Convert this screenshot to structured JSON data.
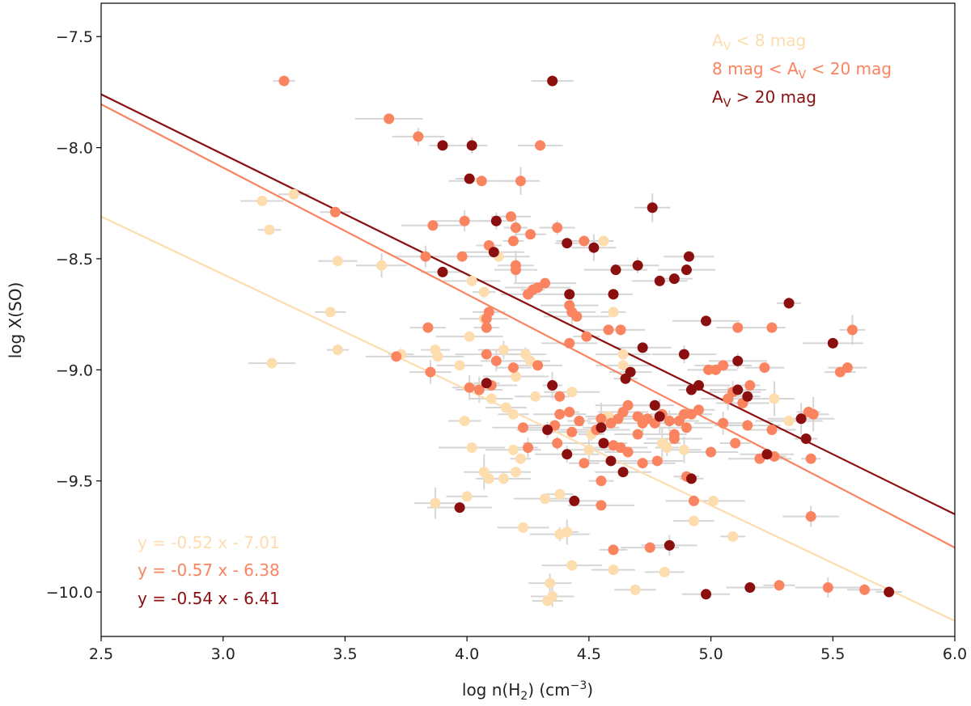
{
  "chart_data": {
    "type": "scatter",
    "xlabel": "log n(H₂) (cm⁻³)",
    "ylabel": "log X(SO)",
    "xlim": [
      2.5,
      6.0
    ],
    "ylim": [
      -10.2,
      -7.35
    ],
    "xticks": [
      "2.5",
      "3.0",
      "3.5",
      "4.0",
      "4.5",
      "5.0",
      "5.5",
      "6.0"
    ],
    "yticks": [
      "-7.5",
      "-8.0",
      "-8.5",
      "-9.0",
      "-9.5",
      "-10.0"
    ],
    "xtick_values": [
      2.5,
      3.0,
      3.5,
      4.0,
      4.5,
      5.0,
      5.5,
      6.0
    ],
    "ytick_values": [
      -7.5,
      -8.0,
      -8.5,
      -9.0,
      -9.5,
      -10.0
    ],
    "legend_position": "top-right",
    "fit_position": "bottom-left",
    "series": [
      {
        "name": "A_V < 8 mag",
        "legend": "AV < 8 mag",
        "color": "#fddcae",
        "fit": {
          "slope": -0.52,
          "intercept": -7.01,
          "label": "y = -0.52 x - 7.01"
        },
        "points": [
          [
            3.16,
            -8.24
          ],
          [
            3.29,
            -8.21
          ],
          [
            3.19,
            -8.37
          ],
          [
            3.47,
            -8.51
          ],
          [
            3.65,
            -8.53
          ],
          [
            3.44,
            -8.74
          ],
          [
            3.2,
            -8.97
          ],
          [
            3.47,
            -8.91
          ],
          [
            3.73,
            -8.93
          ],
          [
            3.87,
            -8.91
          ],
          [
            3.88,
            -8.94
          ],
          [
            4.01,
            -8.85
          ],
          [
            3.97,
            -8.98
          ],
          [
            4.02,
            -8.6
          ],
          [
            4.07,
            -8.65
          ],
          [
            4.13,
            -8.49
          ],
          [
            4.07,
            -8.77
          ],
          [
            4.15,
            -8.91
          ],
          [
            4.24,
            -8.93
          ],
          [
            4.26,
            -8.96
          ],
          [
            4.2,
            -9.03
          ],
          [
            4.1,
            -9.13
          ],
          [
            4.16,
            -9.17
          ],
          [
            4.19,
            -9.2
          ],
          [
            3.99,
            -9.23
          ],
          [
            4.02,
            -9.35
          ],
          [
            4.19,
            -9.36
          ],
          [
            4.22,
            -9.4
          ],
          [
            4.2,
            -9.46
          ],
          [
            4.15,
            -9.49
          ],
          [
            4.09,
            -9.49
          ],
          [
            4.07,
            -9.46
          ],
          [
            4.0,
            -9.57
          ],
          [
            3.87,
            -9.6
          ],
          [
            4.32,
            -9.58
          ],
          [
            4.38,
            -9.56
          ],
          [
            4.23,
            -9.71
          ],
          [
            4.38,
            -9.74
          ],
          [
            4.41,
            -9.73
          ],
          [
            4.43,
            -9.88
          ],
          [
            4.34,
            -9.96
          ],
          [
            4.35,
            -10.02
          ],
          [
            4.33,
            -10.04
          ],
          [
            4.51,
            -9.29
          ],
          [
            4.5,
            -9.36
          ],
          [
            4.6,
            -8.74
          ],
          [
            4.56,
            -8.42
          ],
          [
            4.64,
            -8.93
          ],
          [
            4.64,
            -8.98
          ],
          [
            4.8,
            -9.33
          ],
          [
            4.82,
            -9.35
          ],
          [
            4.89,
            -9.36
          ],
          [
            4.93,
            -9.68
          ],
          [
            5.01,
            -9.59
          ],
          [
            5.09,
            -9.75
          ],
          [
            4.6,
            -9.9
          ],
          [
            4.69,
            -9.99
          ],
          [
            4.81,
            -9.91
          ],
          [
            5.05,
            -9.24
          ],
          [
            5.32,
            -9.23
          ],
          [
            5.26,
            -9.13
          ],
          [
            4.58,
            -9.21
          ],
          [
            4.43,
            -9.1
          ],
          [
            4.28,
            -9.12
          ]
        ]
      },
      {
        "name": "8 mag < A_V < 20 mag",
        "legend": "8 mag < AV < 20 mag",
        "color": "#fa8460",
        "fit": {
          "slope": -0.57,
          "intercept": -6.38,
          "label": "y = -0.57 x - 6.38"
        },
        "points": [
          [
            3.25,
            -7.7
          ],
          [
            3.68,
            -7.87
          ],
          [
            3.8,
            -7.95
          ],
          [
            4.3,
            -7.99
          ],
          [
            4.06,
            -8.15
          ],
          [
            4.22,
            -8.15
          ],
          [
            3.46,
            -8.29
          ],
          [
            3.86,
            -8.35
          ],
          [
            3.99,
            -8.33
          ],
          [
            4.18,
            -8.31
          ],
          [
            4.2,
            -8.36
          ],
          [
            4.26,
            -8.39
          ],
          [
            4.37,
            -8.36
          ],
          [
            4.48,
            -8.42
          ],
          [
            3.83,
            -8.49
          ],
          [
            3.98,
            -8.49
          ],
          [
            4.09,
            -8.44
          ],
          [
            4.19,
            -8.42
          ],
          [
            4.2,
            -8.53
          ],
          [
            4.2,
            -8.55
          ],
          [
            4.32,
            -8.61
          ],
          [
            4.29,
            -8.63
          ],
          [
            4.27,
            -8.64
          ],
          [
            4.25,
            -8.66
          ],
          [
            4.09,
            -8.74
          ],
          [
            4.08,
            -8.77
          ],
          [
            4.42,
            -8.71
          ],
          [
            4.43,
            -8.74
          ],
          [
            4.45,
            -8.76
          ],
          [
            3.84,
            -8.81
          ],
          [
            4.08,
            -8.81
          ],
          [
            4.58,
            -8.82
          ],
          [
            4.63,
            -8.82
          ],
          [
            4.49,
            -8.85
          ],
          [
            4.42,
            -8.88
          ],
          [
            3.71,
            -8.94
          ],
          [
            4.08,
            -8.93
          ],
          [
            4.12,
            -8.96
          ],
          [
            4.19,
            -8.99
          ],
          [
            4.29,
            -8.98
          ],
          [
            3.85,
            -9.01
          ],
          [
            4.01,
            -9.08
          ],
          [
            4.05,
            -9.09
          ],
          [
            4.1,
            -9.07
          ],
          [
            4.38,
            -9.12
          ],
          [
            4.42,
            -9.19
          ],
          [
            4.46,
            -9.23
          ],
          [
            4.43,
            -9.28
          ],
          [
            4.55,
            -9.22
          ],
          [
            4.53,
            -9.27
          ],
          [
            4.59,
            -9.24
          ],
          [
            4.62,
            -9.22
          ],
          [
            4.64,
            -9.19
          ],
          [
            4.66,
            -9.16
          ],
          [
            4.7,
            -9.21
          ],
          [
            4.72,
            -9.24
          ],
          [
            4.74,
            -9.22
          ],
          [
            4.77,
            -9.24
          ],
          [
            4.8,
            -9.2
          ],
          [
            4.83,
            -9.23
          ],
          [
            4.85,
            -9.29
          ],
          [
            4.87,
            -9.23
          ],
          [
            4.89,
            -9.2
          ],
          [
            4.9,
            -9.26
          ],
          [
            4.92,
            -9.2
          ],
          [
            4.95,
            -9.18
          ],
          [
            4.99,
            -9.0
          ],
          [
            5.02,
            -9.0
          ],
          [
            5.05,
            -8.98
          ],
          [
            5.07,
            -9.13
          ],
          [
            5.09,
            -9.1
          ],
          [
            5.05,
            -9.24
          ],
          [
            5.0,
            -9.37
          ],
          [
            5.11,
            -8.81
          ],
          [
            5.16,
            -9.07
          ],
          [
            5.13,
            -9.15
          ],
          [
            5.15,
            -9.25
          ],
          [
            5.1,
            -9.33
          ],
          [
            5.2,
            -9.4
          ],
          [
            5.22,
            -8.99
          ],
          [
            5.25,
            -8.81
          ],
          [
            5.25,
            -9.27
          ],
          [
            5.26,
            -9.39
          ],
          [
            5.4,
            -9.19
          ],
          [
            5.41,
            -9.4
          ],
          [
            5.42,
            -9.2
          ],
          [
            5.53,
            -9.01
          ],
          [
            5.56,
            -8.99
          ],
          [
            5.58,
            -8.82
          ],
          [
            4.23,
            -9.26
          ],
          [
            4.25,
            -9.35
          ],
          [
            4.37,
            -9.33
          ],
          [
            4.48,
            -9.42
          ],
          [
            4.55,
            -9.5
          ],
          [
            4.6,
            -9.34
          ],
          [
            4.66,
            -9.37
          ],
          [
            4.72,
            -9.42
          ],
          [
            4.78,
            -9.41
          ],
          [
            4.9,
            -9.48
          ],
          [
            4.93,
            -9.59
          ],
          [
            4.55,
            -9.61
          ],
          [
            4.6,
            -9.81
          ],
          [
            4.75,
            -9.8
          ],
          [
            5.28,
            -9.97
          ],
          [
            5.48,
            -9.98
          ],
          [
            5.63,
            -9.99
          ],
          [
            5.41,
            -9.66
          ],
          [
            4.63,
            -9.35
          ],
          [
            4.7,
            -9.29
          ],
          [
            4.85,
            -9.31
          ],
          [
            4.38,
            -9.2
          ],
          [
            4.36,
            -9.25
          ]
        ]
      },
      {
        "name": "A_V > 20 mag",
        "legend": "AV > 20 mag",
        "color": "#8b0f0f",
        "fit": {
          "slope": -0.54,
          "intercept": -6.41,
          "label": "y = -0.54 x - 6.41"
        },
        "points": [
          [
            4.35,
            -7.7
          ],
          [
            3.9,
            -7.99
          ],
          [
            4.02,
            -7.99
          ],
          [
            4.01,
            -8.14
          ],
          [
            4.76,
            -8.27
          ],
          [
            4.12,
            -8.33
          ],
          [
            4.41,
            -8.43
          ],
          [
            4.52,
            -8.45
          ],
          [
            4.11,
            -8.47
          ],
          [
            3.9,
            -8.56
          ],
          [
            4.61,
            -8.55
          ],
          [
            4.7,
            -8.53
          ],
          [
            4.91,
            -8.49
          ],
          [
            4.9,
            -8.55
          ],
          [
            4.85,
            -8.59
          ],
          [
            4.79,
            -8.6
          ],
          [
            4.6,
            -8.66
          ],
          [
            4.42,
            -8.66
          ],
          [
            5.32,
            -8.7
          ],
          [
            4.98,
            -8.78
          ],
          [
            4.72,
            -8.9
          ],
          [
            4.89,
            -8.93
          ],
          [
            5.11,
            -8.96
          ],
          [
            5.5,
            -8.88
          ],
          [
            4.67,
            -9.01
          ],
          [
            4.65,
            -9.04
          ],
          [
            4.08,
            -9.06
          ],
          [
            4.35,
            -9.07
          ],
          [
            4.92,
            -9.09
          ],
          [
            4.95,
            -9.07
          ],
          [
            5.11,
            -9.09
          ],
          [
            5.15,
            -9.12
          ],
          [
            4.77,
            -9.16
          ],
          [
            4.79,
            -9.21
          ],
          [
            4.55,
            -9.26
          ],
          [
            4.33,
            -9.27
          ],
          [
            5.37,
            -9.22
          ],
          [
            5.39,
            -9.31
          ],
          [
            4.56,
            -9.33
          ],
          [
            4.41,
            -9.38
          ],
          [
            4.59,
            -9.41
          ],
          [
            4.64,
            -9.46
          ],
          [
            4.92,
            -9.49
          ],
          [
            3.97,
            -9.62
          ],
          [
            4.44,
            -9.59
          ],
          [
            4.83,
            -9.79
          ],
          [
            4.98,
            -10.01
          ],
          [
            5.16,
            -9.98
          ],
          [
            5.73,
            -10.0
          ],
          [
            5.23,
            -9.38
          ]
        ]
      }
    ]
  }
}
